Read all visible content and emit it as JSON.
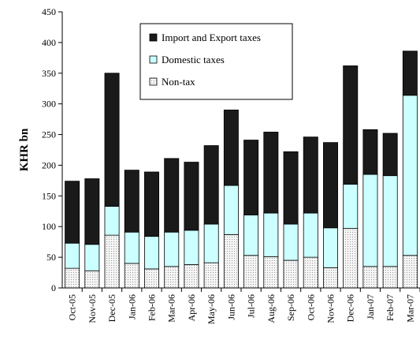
{
  "chart_data": {
    "type": "bar",
    "stacked": true,
    "title": "",
    "xlabel": "",
    "ylabel": "KHR bn",
    "ylim": [
      0,
      450
    ],
    "yticks": [
      0,
      50,
      100,
      150,
      200,
      250,
      300,
      350,
      400,
      450
    ],
    "grid": false,
    "legend_position": "top-center",
    "categories": [
      "Oct-05",
      "Nov-05",
      "Dec-05",
      "Jan-06",
      "Feb-06",
      "Mar-06",
      "Apr-06",
      "May-06",
      "Jun-06",
      "Jul-06",
      "Aug-06",
      "Sep-06",
      "Oct-06",
      "Nov-06",
      "Dec-06",
      "Jan-07",
      "Feb-07",
      "Mar-07"
    ],
    "series": [
      {
        "name": "Non-tax",
        "color": "#eeeeee",
        "pattern": "dotted",
        "values": [
          32,
          28,
          86,
          40,
          31,
          35,
          38,
          41,
          87,
          53,
          51,
          45,
          50,
          33,
          97,
          35,
          35,
          53
        ]
      },
      {
        "name": "Domestic taxes",
        "color": "#ccffff",
        "values": [
          41,
          43,
          47,
          51,
          53,
          56,
          56,
          63,
          80,
          66,
          71,
          59,
          72,
          65,
          72,
          150,
          148,
          261
        ]
      },
      {
        "name": "Import and Export taxes",
        "color": "#1a1a1a",
        "values": [
          101,
          107,
          217,
          101,
          105,
          120,
          111,
          128,
          123,
          122,
          132,
          118,
          124,
          139,
          193,
          73,
          69,
          72
        ]
      }
    ],
    "legend_order": [
      "Import and Export taxes",
      "Domestic taxes",
      "Non-tax"
    ]
  }
}
